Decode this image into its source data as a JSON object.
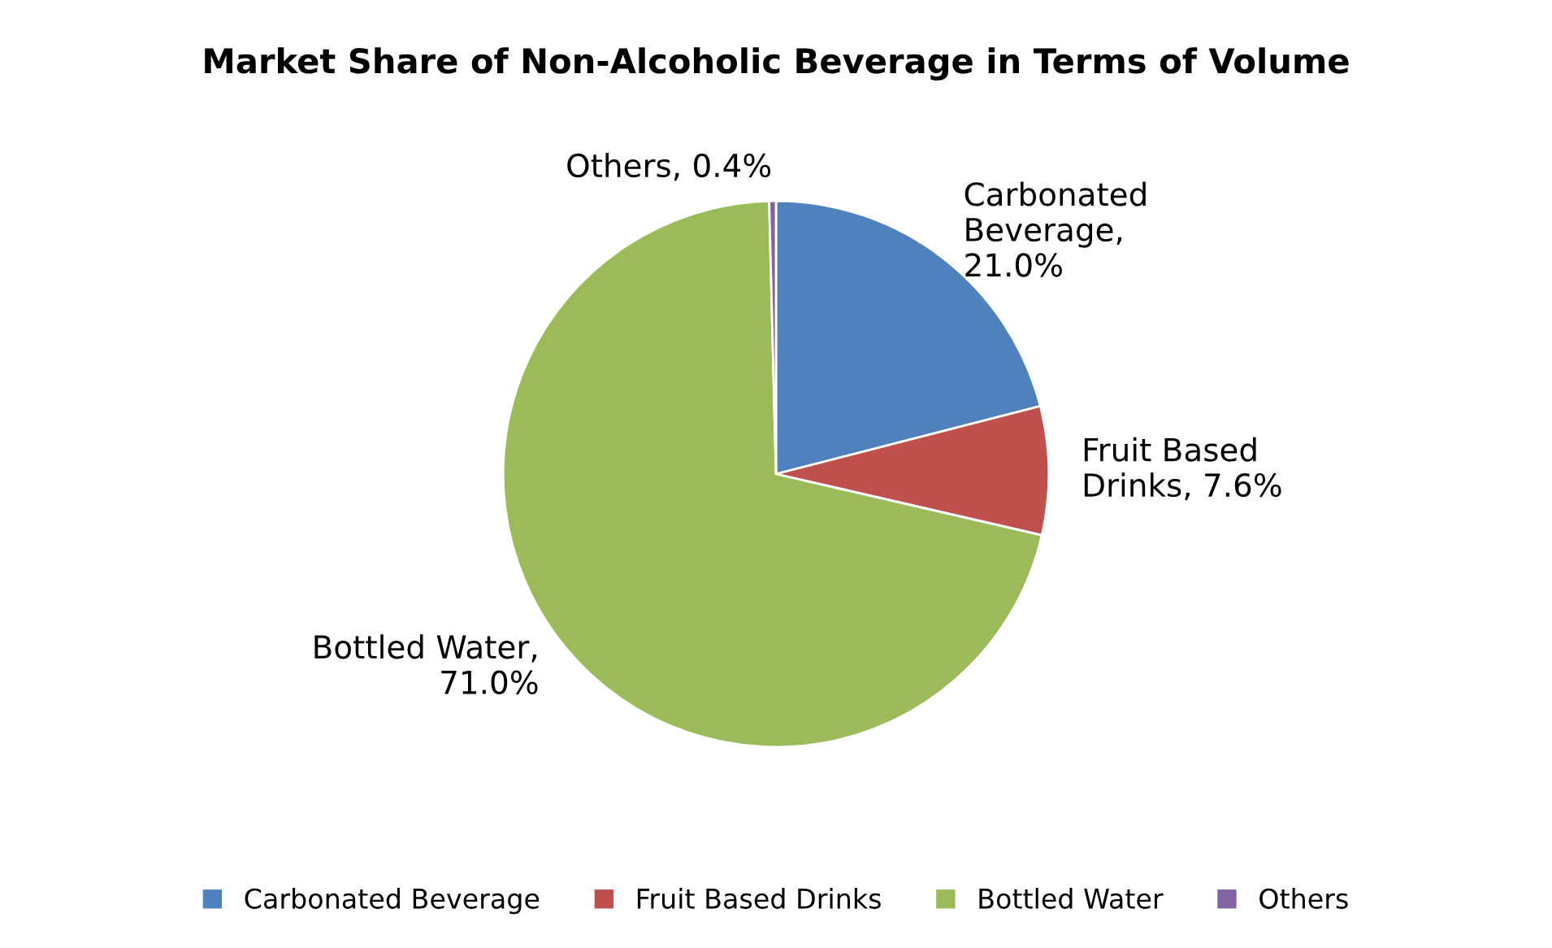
{
  "chart_data": {
    "type": "pie",
    "title": "Market Share of Non-Alcoholic Beverage in Terms of Volume",
    "categories": [
      "Carbonated Beverage",
      "Fruit Based Drinks",
      "Bottled Water",
      "Others"
    ],
    "values": [
      21.0,
      7.6,
      71.0,
      0.4
    ],
    "colors": [
      "#4f81bd",
      "#c0504d",
      "#9bbb59",
      "#8064a2"
    ],
    "value_labels": [
      "Carbonated\nBeverage,\n21.0%",
      "Fruit Based\nDrinks, 7.6%",
      "Bottled Water,\n71.0%",
      "Others, 0.4%"
    ],
    "legend": "bottom"
  }
}
